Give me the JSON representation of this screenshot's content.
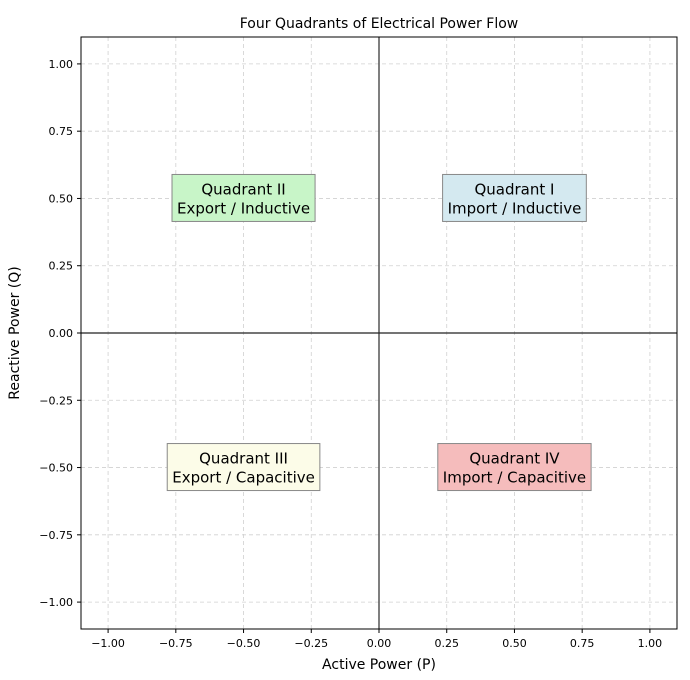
{
  "chart_data": {
    "type": "scatter",
    "title": "Four Quadrants of Electrical Power Flow",
    "xlabel": "Active Power (P)",
    "ylabel": "Reactive Power (Q)",
    "xlim": [
      -1.1,
      1.1
    ],
    "ylim": [
      -1.1,
      1.1
    ],
    "xticks": [
      -1.0,
      -0.75,
      -0.5,
      -0.25,
      0.0,
      0.25,
      0.5,
      0.75,
      1.0
    ],
    "yticks": [
      -1.0,
      -0.75,
      -0.5,
      -0.25,
      0.0,
      0.25,
      0.5,
      0.75,
      1.0
    ],
    "xtick_labels": [
      "−1.00",
      "−0.75",
      "−0.50",
      "−0.25",
      "0.00",
      "0.25",
      "0.50",
      "0.75",
      "1.00"
    ],
    "ytick_labels": [
      "−1.00",
      "−0.75",
      "−0.50",
      "−0.25",
      "0.00",
      "0.25",
      "0.50",
      "0.75",
      "1.00"
    ],
    "grid": true,
    "grid_style": "dashed",
    "axes_lines": {
      "x": 0,
      "y": 0
    },
    "quadrants": [
      {
        "line1": "Quadrant I",
        "line2": "Import / Inductive",
        "x": 0.5,
        "y": 0.5,
        "color": "#d4e9f0"
      },
      {
        "line1": "Quadrant II",
        "line2": "Export / Inductive",
        "x": -0.5,
        "y": 0.5,
        "color": "#c8f5c8"
      },
      {
        "line1": "Quadrant III",
        "line2": "Export / Capacitive",
        "x": -0.5,
        "y": -0.5,
        "color": "#fcfce8"
      },
      {
        "line1": "Quadrant IV",
        "line2": "Import / Capacitive",
        "x": 0.5,
        "y": -0.5,
        "color": "#f5bcbc"
      }
    ]
  }
}
